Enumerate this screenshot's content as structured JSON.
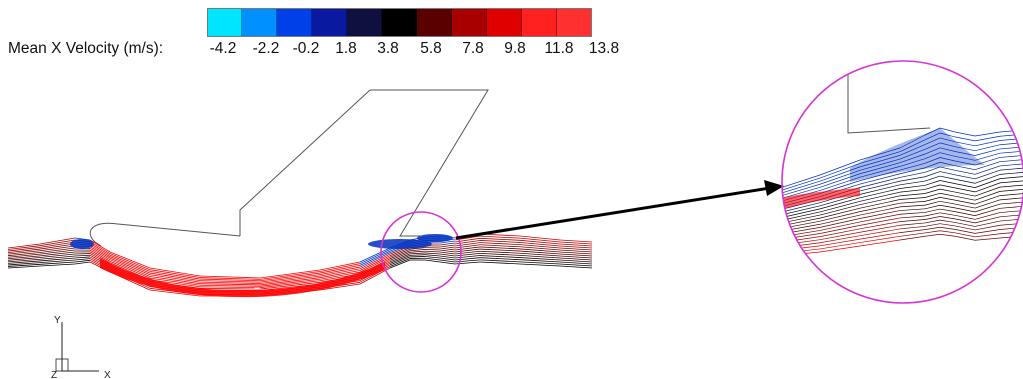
{
  "legend": {
    "label": "Mean X Velocity (m/s):",
    "ticks": [
      "-4.2",
      "-2.2",
      "-0.2",
      "1.8",
      "3.8",
      "5.8",
      "7.8",
      "9.8",
      "11.8",
      "13.8"
    ],
    "colors": [
      "#00e5ff",
      "#0090ff",
      "#0040e8",
      "#0a1aa0",
      "#101040",
      "#000000",
      "#5a0000",
      "#a80000",
      "#e00000",
      "#ff2020",
      "#ff3030"
    ]
  },
  "axes": {
    "y_label": "Y",
    "x_label": "X",
    "z_label": "Z"
  },
  "colors": {
    "callout": "#d633d6",
    "outline": "#555555",
    "positive_flow": "#ff0000",
    "negative_flow": "#0030c0",
    "neutral_flow": "#000000"
  }
}
